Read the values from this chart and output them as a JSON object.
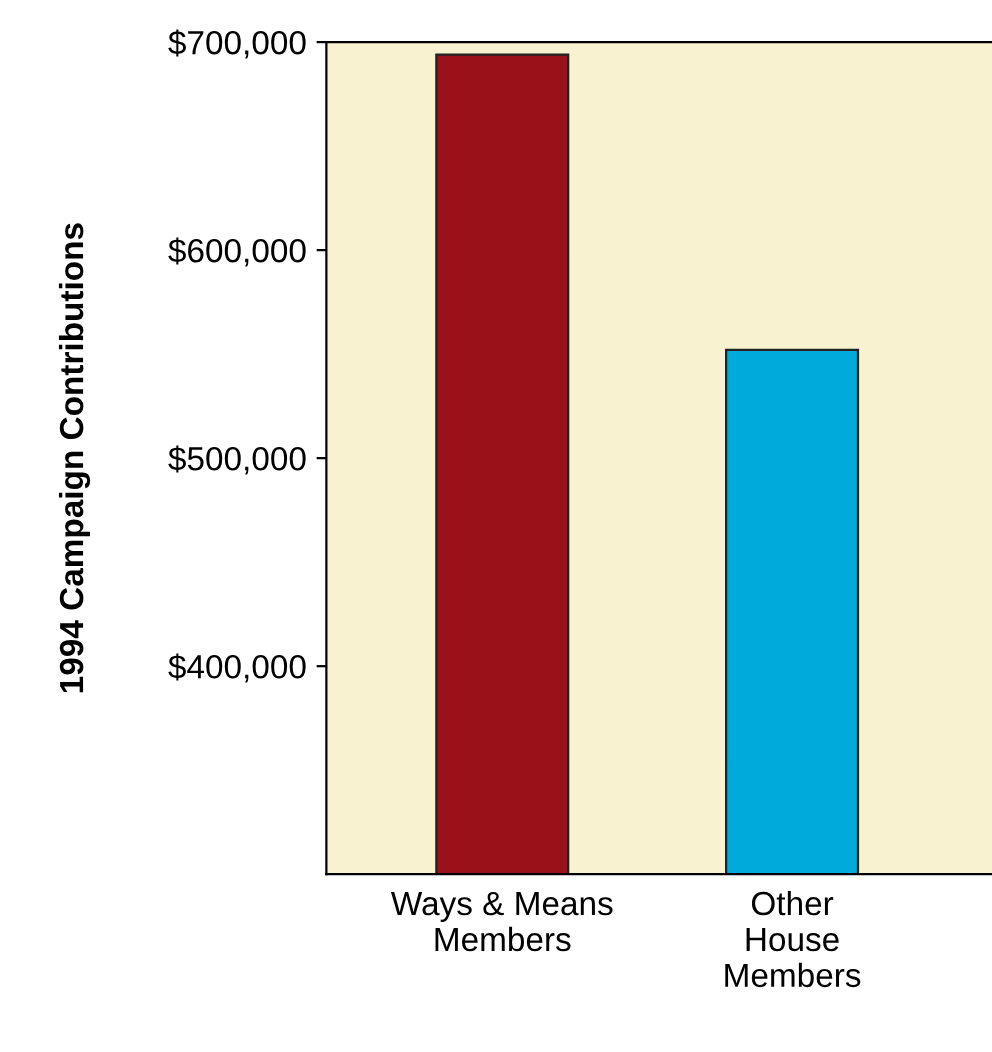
{
  "chart_data": {
    "type": "bar",
    "ylabel": "1994 Campaign Contributions",
    "categories": [
      "Ways & Means\nMembers",
      "Other\nHouse\nMembers"
    ],
    "values": [
      694000,
      552000
    ],
    "colors": [
      "#9b111a",
      "#00aadb"
    ],
    "ylim": [
      300000,
      700000
    ],
    "yticks": [
      {
        "value": 400000,
        "label": "$400,000"
      },
      {
        "value": 500000,
        "label": "$500,000"
      },
      {
        "value": 600000,
        "label": "$600,000"
      },
      {
        "value": 700000,
        "label": "$700,000"
      }
    ],
    "grid": false,
    "legend": false
  }
}
